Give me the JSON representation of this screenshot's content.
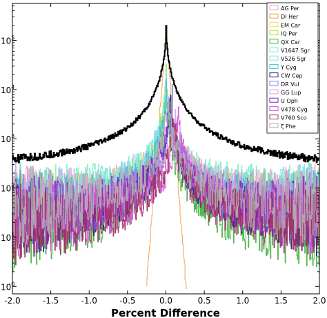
{
  "chart_data": {
    "type": "line",
    "xlabel": "Percent Difference",
    "ylabel": "",
    "xlim": [
      -2.0,
      2.0
    ],
    "ylim_log10": [
      -0.15,
      5.75
    ],
    "y_scale": "log",
    "grid": false,
    "legend_position": "top-right",
    "x_ticks": [
      "-2.0",
      "-1.5",
      "-1.0",
      "-0.5",
      "0.0",
      "0.5",
      "1.0",
      "1.5",
      "2.0"
    ],
    "x_tick_values": [
      -2.0,
      -1.5,
      -1.0,
      -0.5,
      0.0,
      0.5,
      1.0,
      1.5,
      2.0
    ],
    "y_ticks": [
      {
        "value": 0,
        "base": "10",
        "exp": "0"
      },
      {
        "value": 1,
        "base": "10",
        "exp": "1"
      },
      {
        "value": 2,
        "base": "10",
        "exp": "2"
      },
      {
        "value": 3,
        "base": "10",
        "exp": "3"
      },
      {
        "value": 4,
        "base": "10",
        "exp": "4"
      },
      {
        "value": 5,
        "base": "10",
        "exp": "5"
      }
    ],
    "combined": {
      "color": "#000000",
      "peak": 200000,
      "at_edges": 230
    },
    "series": [
      {
        "name": "AG Per",
        "color": "#f0a0c8",
        "peak_x": 0.0,
        "peak": 20000,
        "edge": 40
      },
      {
        "name": "DI Her",
        "color": "#f0a040",
        "peak_x": 0.0,
        "peak": 150000,
        "edge": 0,
        "narrow": true
      },
      {
        "name": "EM Car",
        "color": "#f0e060",
        "peak_x": 0.0,
        "peak": 30000,
        "edge": 30
      },
      {
        "name": "IQ Per",
        "color": "#b0e040",
        "peak_x": 0.0,
        "peak": 25000,
        "edge": 30
      },
      {
        "name": "QX Car",
        "color": "#40b040",
        "peak_x": 0.0,
        "peak": 15000,
        "edge": 10
      },
      {
        "name": "V1647 Sgr",
        "color": "#80f0c0",
        "peak_x": 0.0,
        "peak": 20000,
        "edge": 50
      },
      {
        "name": "V526 Sgr",
        "color": "#80e0f0",
        "peak_x": 0.0,
        "peak": 25000,
        "edge": 40
      },
      {
        "name": "Y Cyg",
        "color": "#40c0e0",
        "peak_x": 0.0,
        "peak": 15000,
        "edge": 30
      },
      {
        "name": "CW Cep",
        "color": "#202080",
        "peak_x": 0.05,
        "peak": 10000,
        "edge": 20
      },
      {
        "name": "DR Vul",
        "color": "#8080e0",
        "peak_x": 0.08,
        "peak": 8000,
        "edge": 30
      },
      {
        "name": "GG Lup",
        "color": "#e0a0e0",
        "peak_x": 0.12,
        "peak": 6000,
        "edge": 40
      },
      {
        "name": "U Oph",
        "color": "#8020c0",
        "peak_x": 0.04,
        "peak": 9000,
        "edge": 25
      },
      {
        "name": "V478 Cyg",
        "color": "#d050d0",
        "peak_x": 0.16,
        "peak": 5000,
        "edge": 20
      },
      {
        "name": "V760 Sco",
        "color": "#a03060",
        "peak_x": 0.1,
        "peak": 4000,
        "edge": 15
      },
      {
        "name": "ζ Phe",
        "color": "#b0b0b0",
        "peak_x": 0.02,
        "peak": 10000,
        "edge": 35
      }
    ]
  }
}
